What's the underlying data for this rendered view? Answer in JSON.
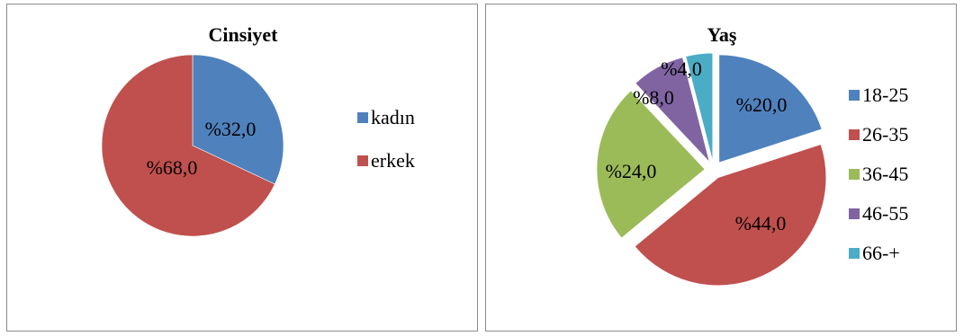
{
  "chart_data": [
    {
      "type": "pie",
      "title": "Cinsiyet",
      "categories": [
        "kadın",
        "erkek"
      ],
      "values": [
        32.0,
        68.0
      ],
      "labels": [
        "%32,0",
        "%68,0"
      ],
      "colors": [
        "#4f81bd",
        "#c0504d"
      ],
      "exploded": false,
      "legend": "right"
    },
    {
      "type": "pie",
      "title": "Yaş",
      "categories": [
        "18-25",
        "26-35",
        "36-45",
        "46-55",
        "66-+"
      ],
      "values": [
        20.0,
        44.0,
        24.0,
        8.0,
        4.0
      ],
      "labels": [
        "%20,0",
        "%44,0",
        "%24,0",
        "%8,0",
        "%4,0"
      ],
      "colors": [
        "#4f81bd",
        "#c0504d",
        "#9bbb59",
        "#8064a2",
        "#4bacc6"
      ],
      "exploded": true,
      "legend": "right"
    }
  ]
}
